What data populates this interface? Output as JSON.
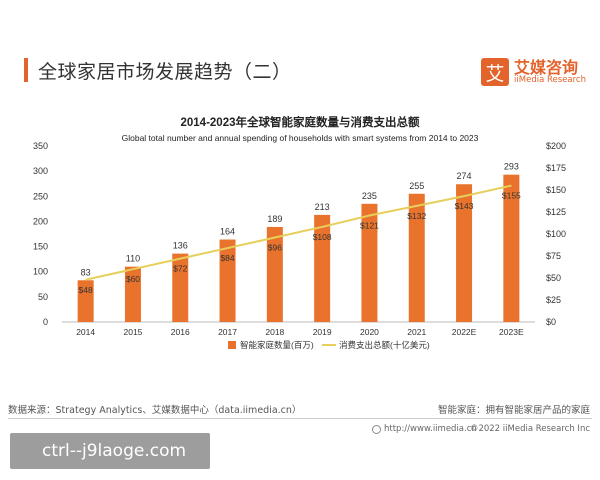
{
  "header": {
    "page_title": "全球家居市场发展趋势（二）"
  },
  "logo": {
    "mark": "艾",
    "name_cn": "艾媒咨询",
    "name_en": "iiMedia Research"
  },
  "chart_data": {
    "type": "bar",
    "title": "2014-2023年全球智能家庭数量与消费支出总额",
    "subtitle": "Global total number and  annual spending of households with smart systems from 2014 to 2023",
    "categories": [
      "2014",
      "2015",
      "2016",
      "2017",
      "2018",
      "2019",
      "2020",
      "2021",
      "2022E",
      "2023E"
    ],
    "series": [
      {
        "name": "智能家庭数量(百万)",
        "kind": "bar",
        "axis": "left",
        "color": "#e9732c",
        "values": [
          83,
          110,
          136,
          164,
          189,
          213,
          235,
          255,
          274,
          293
        ],
        "labels": [
          "83",
          "110",
          "136",
          "164",
          "189",
          "213",
          "235",
          "255",
          "274",
          "293"
        ]
      },
      {
        "name": "消费支出总额(十亿美元)",
        "kind": "line",
        "axis": "right",
        "color": "#e6cf5a",
        "values": [
          48,
          60,
          72,
          84,
          96,
          108,
          121,
          132,
          143,
          155
        ],
        "labels": [
          "$48",
          "$60",
          "$72",
          "$84",
          "$96",
          "$108",
          "$121",
          "$132",
          "$143",
          "$155"
        ]
      }
    ],
    "y_left": {
      "range": [
        0,
        350
      ],
      "ticks": [
        "0",
        "50",
        "100",
        "150",
        "200",
        "250",
        "300",
        "350"
      ]
    },
    "y_right": {
      "range": [
        0,
        200
      ],
      "ticks": [
        "$0",
        "$25",
        "$50",
        "$75",
        "$100",
        "$125",
        "$150",
        "$175",
        "$200"
      ]
    },
    "grid": false,
    "legend": "bottom-center"
  },
  "footer": {
    "source": "数据来源：Strategy Analytics、艾媒数据中心（data.iimedia.cn）",
    "note": "智能家庭：拥有智能家居产品的家庭",
    "url": "http://www.iimedia.cn",
    "copyright": "©2022  iiMedia Research  Inc"
  },
  "watermark": {
    "text": "ctrl--j9laoge.com"
  }
}
